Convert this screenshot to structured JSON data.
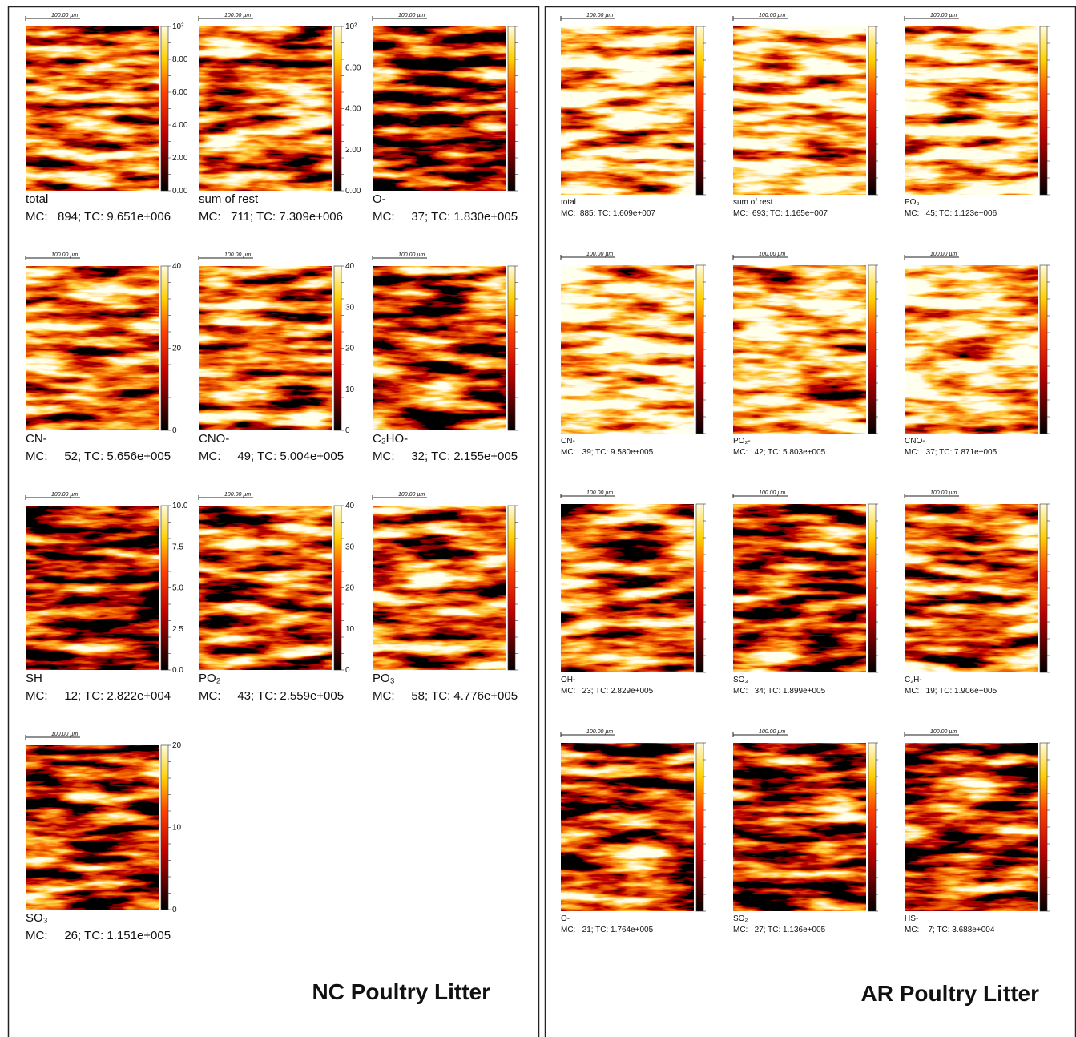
{
  "panels": [
    {
      "title": "NC Poultry Litter",
      "scale_bar": "100.00 µm",
      "maps": [
        {
          "label": "total",
          "stats": "MC:   894; TC: 9.651e+006",
          "colorbar_ticks": [
            "10²",
            "8.00",
            "6.00",
            "4.00",
            "2.00",
            "0.00"
          ]
        },
        {
          "label": "sum of rest",
          "stats": "MC:   711; TC: 7.309e+006",
          "colorbar_ticks": [
            "10²",
            "6.00",
            "4.00",
            "2.00",
            "0.00"
          ]
        },
        {
          "label": "O-",
          "stats": "MC:     37; TC: 1.830e+005"
        },
        {
          "label": "CN-",
          "stats": "MC:     52; TC: 5.656e+005",
          "colorbar_ticks": [
            "40",
            "20",
            "0"
          ]
        },
        {
          "label": "CNO-",
          "stats": "MC:     49; TC: 5.004e+005",
          "colorbar_ticks": [
            "40",
            "30",
            "20",
            "10",
            "0"
          ]
        },
        {
          "label": "C₂HO-",
          "stats": "MC:     32; TC: 2.155e+005"
        },
        {
          "label": "SH",
          "stats": "MC:     12; TC: 2.822e+004",
          "colorbar_ticks": [
            "10.0",
            "7.5",
            "5.0",
            "2.5",
            "0.0"
          ]
        },
        {
          "label": "PO₂",
          "stats": "MC:     43; TC: 2.559e+005",
          "colorbar_ticks": [
            "40",
            "30",
            "20",
            "10",
            "0"
          ]
        },
        {
          "label": "PO₃",
          "stats": "MC:     58; TC: 4.776e+005"
        },
        {
          "label": "SO₃",
          "stats": "MC:     26; TC: 1.151e+005",
          "colorbar_ticks": [
            "20",
            "10",
            "0"
          ]
        }
      ]
    },
    {
      "title": "AR Poultry Litter",
      "scale_bar": "100.00 µm",
      "maps": [
        {
          "label": "total",
          "stats": "MC:  885; TC: 1.609e+007"
        },
        {
          "label": "sum of rest",
          "stats": "MC:  693; TC: 1.165e+007"
        },
        {
          "label": "PO₃",
          "stats": "MC:   45; TC: 1.123e+006"
        },
        {
          "label": "CN-",
          "stats": "MC:   39; TC: 9.580e+005"
        },
        {
          "label": "PO₂-",
          "stats": "MC:   42; TC: 5.803e+005"
        },
        {
          "label": "CNO-",
          "stats": "MC:   37; TC: 7.871e+005"
        },
        {
          "label": "OH-",
          "stats": "MC:   23; TC: 2.829e+005"
        },
        {
          "label": "SO₃",
          "stats": "MC:   34; TC: 1.899e+005"
        },
        {
          "label": "C₂H-",
          "stats": "MC:   19; TC: 1.906e+005"
        },
        {
          "label": "O-",
          "stats": "MC:   21; TC: 1.764e+005"
        },
        {
          "label": "SO₂",
          "stats": "MC:   27; TC: 1.136e+005"
        },
        {
          "label": "HS-",
          "stats": "MC:    7; TC: 3.688e+004"
        }
      ]
    }
  ]
}
